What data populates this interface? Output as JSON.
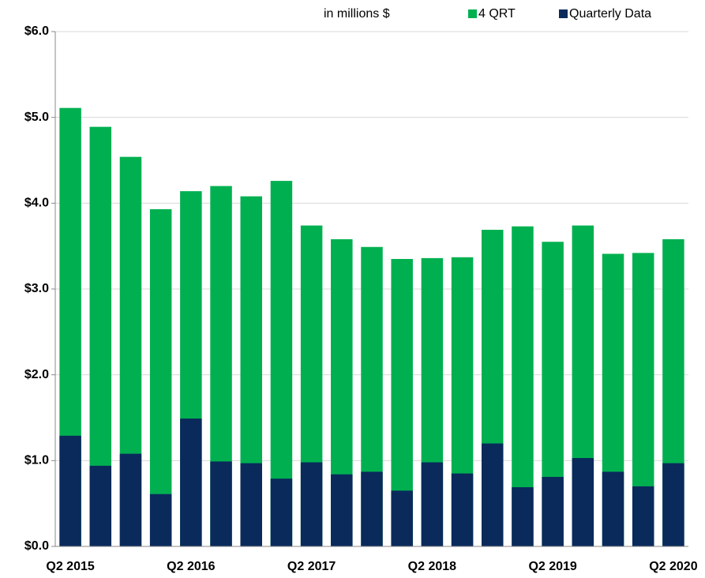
{
  "chart_data": {
    "type": "bar",
    "annotation": "in millions $",
    "categories": [
      "Q2 2015",
      null,
      null,
      null,
      "Q2 2016",
      null,
      null,
      null,
      "Q2 2017",
      null,
      null,
      null,
      "Q2 2018",
      null,
      null,
      null,
      "Q2 2019",
      null,
      null,
      null,
      "Q2 2020"
    ],
    "series": [
      {
        "name": "4 QRT",
        "color": "#00b050",
        "values": [
          5.11,
          4.89,
          4.54,
          3.93,
          4.14,
          4.2,
          4.08,
          4.26,
          3.74,
          3.58,
          3.49,
          3.35,
          3.36,
          3.37,
          3.69,
          3.73,
          3.55,
          3.74,
          3.41,
          3.42,
          3.58
        ]
      },
      {
        "name": "Quarterly Data",
        "color": "#0a2a5c",
        "values": [
          1.29,
          0.94,
          1.08,
          0.61,
          1.49,
          0.99,
          0.97,
          0.79,
          0.98,
          0.84,
          0.87,
          0.65,
          0.98,
          0.85,
          1.2,
          0.69,
          0.81,
          1.03,
          0.87,
          0.7,
          0.97
        ]
      }
    ],
    "ylim": [
      0,
      6
    ],
    "yticks": [
      {
        "value": 0,
        "label": "$0.0"
      },
      {
        "value": 1,
        "label": "$1.0"
      },
      {
        "value": 2,
        "label": "$2.0"
      },
      {
        "value": 3,
        "label": "$3.0"
      },
      {
        "value": 4,
        "label": "$4.0"
      },
      {
        "value": 5,
        "label": "$5.0"
      },
      {
        "value": 6,
        "label": "$6.0"
      }
    ],
    "grid": true
  }
}
